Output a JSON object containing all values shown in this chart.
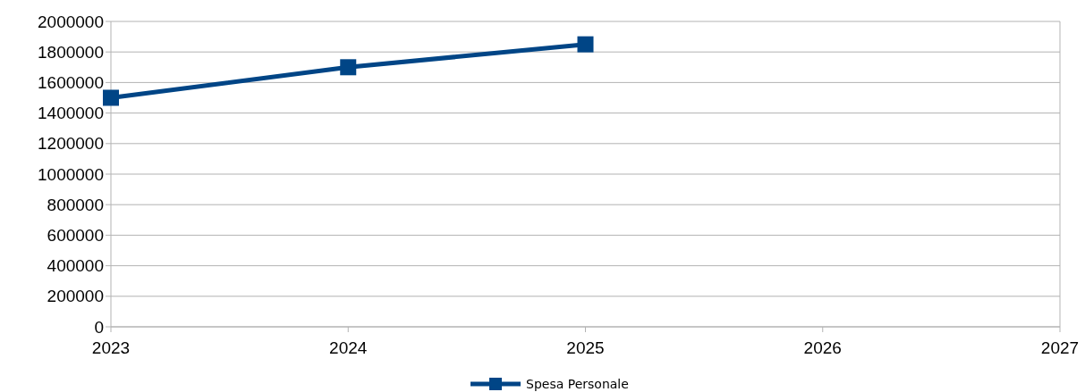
{
  "chart_data": {
    "type": "line",
    "x": [
      2023,
      2024,
      2025
    ],
    "series": [
      {
        "name": "Spesa Personale",
        "color": "#004586",
        "values": [
          1500000,
          1700000,
          1850000
        ]
      }
    ],
    "xlim": [
      2023,
      2027
    ],
    "xticks": [
      2023,
      2024,
      2025,
      2026,
      2027
    ],
    "ylim": [
      0,
      2000000
    ],
    "yticks": [
      0,
      200000,
      400000,
      600000,
      800000,
      1000000,
      1200000,
      1400000,
      1600000,
      1800000,
      2000000
    ],
    "grid": "y",
    "legend": "bottom",
    "marker": "square",
    "line_style": "solid"
  }
}
